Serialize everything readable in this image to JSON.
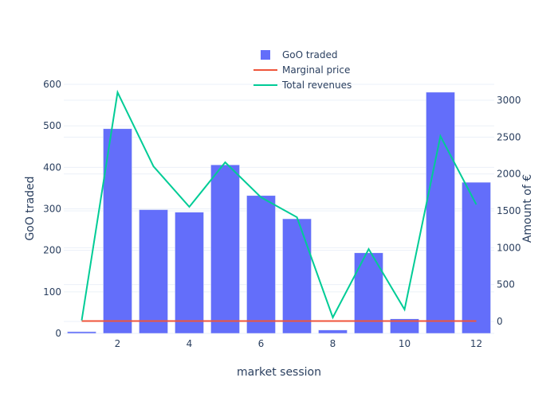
{
  "chart_data": {
    "type": "bar+line",
    "title": "",
    "xlabel": "market session",
    "ylabel_left": "GoO traded",
    "ylabel_right": "Amount of €",
    "x": [
      1,
      2,
      3,
      4,
      5,
      6,
      7,
      8,
      9,
      10,
      11,
      12
    ],
    "xlim": [
      0.5,
      12.5
    ],
    "x_ticks": [
      "2",
      "4",
      "6",
      "8",
      "10",
      "12"
    ],
    "ylim_left": [
      0,
      600
    ],
    "y_ticks_left": [
      "0",
      "100",
      "200",
      "300",
      "400",
      "500",
      "600"
    ],
    "ylim_right": [
      -160,
      3220
    ],
    "y_ticks_right": [
      "0",
      "500",
      "1000",
      "1500",
      "2000",
      "2500",
      "3000"
    ],
    "grid": true,
    "legend_position": "top-center",
    "series": [
      {
        "name": "GoO traded",
        "type": "bar",
        "axis": "left",
        "color": "#636efa",
        "values": [
          4,
          493,
          298,
          292,
          406,
          332,
          276,
          8,
          194,
          35,
          581,
          364
        ]
      },
      {
        "name": "Marginal price",
        "type": "line",
        "axis": "right",
        "color": "#ef553b",
        "values": [
          5,
          5,
          5,
          5,
          5,
          5,
          5,
          5,
          5,
          5,
          5,
          5
        ]
      },
      {
        "name": "Total revenues",
        "type": "line",
        "axis": "right",
        "color": "#00cc96",
        "values": [
          15,
          3107,
          2104,
          1554,
          2158,
          1683,
          1413,
          54,
          982,
          162,
          2514,
          1586
        ]
      }
    ]
  }
}
